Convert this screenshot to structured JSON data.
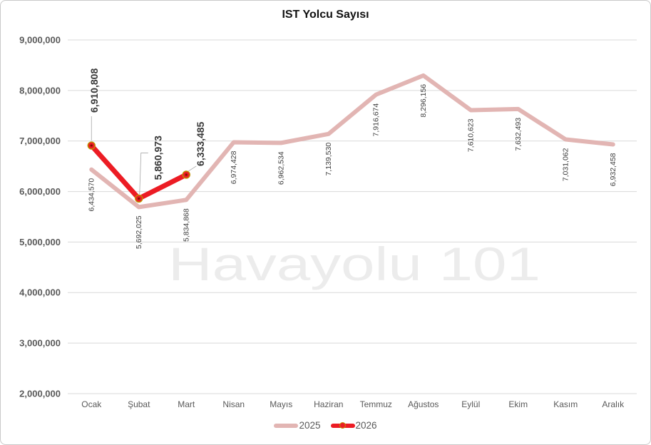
{
  "chart_data": {
    "type": "line",
    "title": "IST Yolcu Sayısı",
    "watermark": "Havayolu 101",
    "categories": [
      "Ocak",
      "Şubat",
      "Mart",
      "Nisan",
      "Mayıs",
      "Haziran",
      "Temmuz",
      "Ağustos",
      "Eylül",
      "Ekim",
      "Kasım",
      "Aralık"
    ],
    "ylim": [
      2000000,
      9000000
    ],
    "yticks": [
      2000000,
      3000000,
      4000000,
      5000000,
      6000000,
      7000000,
      8000000,
      9000000
    ],
    "grid": true,
    "legend_position": "bottom",
    "data_labels_visible": true,
    "gridline_color": "#D9D9D9",
    "axis_label_color": "#595959",
    "watermark_color": "#ECECEC",
    "leader_line_color": "#A6A6A6",
    "series": [
      {
        "name": "2025",
        "color": "#E2B5B3",
        "line_width": 6,
        "values": [
          6434570,
          5692025,
          5834868,
          6974428,
          6962534,
          7139530,
          7916674,
          8296156,
          7610623,
          7632493,
          7031062,
          6932458
        ]
      },
      {
        "name": "2026",
        "color": "#EC1C24",
        "marker_ring_color": "#BF9000",
        "marker_center_color": "#7E1300",
        "line_width": 7,
        "values": [
          6910808,
          5860973,
          6333485
        ]
      }
    ]
  }
}
